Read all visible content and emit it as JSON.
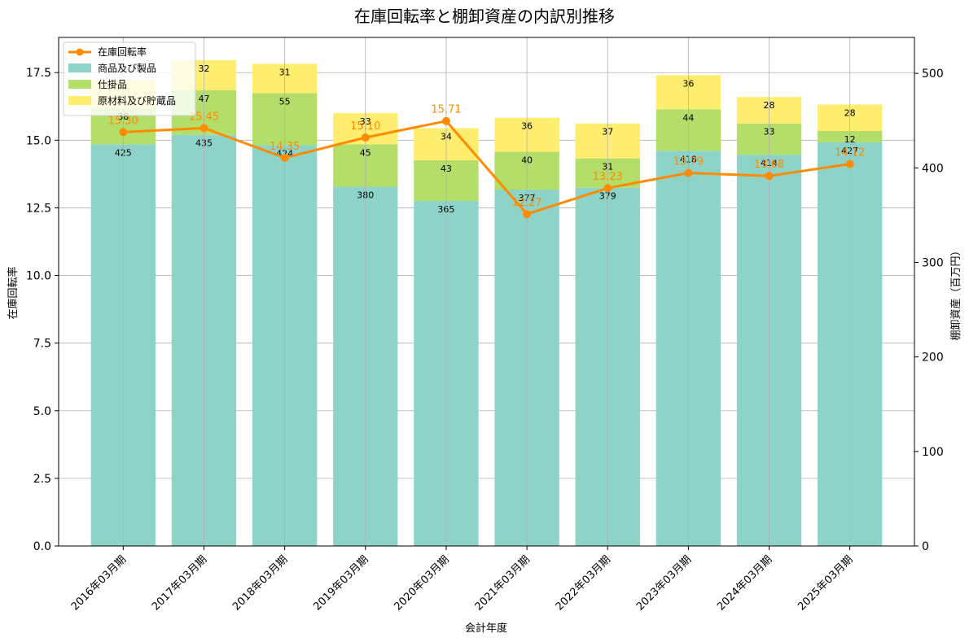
{
  "chart_data": {
    "type": "bar",
    "title": "在庫回転率と棚卸資産の内訳別推移",
    "xlabel": "会計年度",
    "ylabel_left": "在庫回転率",
    "ylabel_right": "棚卸資産（百万円）",
    "categories": [
      "2016年03月期",
      "2017年03月期",
      "2018年03月期",
      "2019年03月期",
      "2020年03月期",
      "2021年03月期",
      "2022年03月期",
      "2023年03月期",
      "2024年03月期",
      "2025年03月期"
    ],
    "ylim_left": [
      0,
      18.8
    ],
    "ylim_right": [
      0,
      538
    ],
    "yticks_left": [
      "0.0",
      "2.5",
      "5.0",
      "7.5",
      "10.0",
      "12.5",
      "15.0",
      "17.5"
    ],
    "yticks_right": [
      "0",
      "100",
      "200",
      "300",
      "400",
      "500"
    ],
    "grid": true,
    "legend_position": "top-left",
    "series": [
      {
        "name": "商品及び製品",
        "axis": "right",
        "kind": "bar",
        "color": "#8dd3c7",
        "values": [
          425,
          435,
          424,
          380,
          365,
          377,
          379,
          418,
          414,
          427
        ],
        "labels": [
          "425",
          "435",
          "424",
          "380",
          "365",
          "377",
          "379",
          "418",
          "414",
          "427"
        ]
      },
      {
        "name": "仕掛品",
        "axis": "right",
        "kind": "bar",
        "color": "#b3de69",
        "values": [
          38,
          47,
          55,
          45,
          43,
          40,
          31,
          44,
          33,
          12
        ],
        "labels": [
          "38",
          "47",
          "55",
          "45",
          "43",
          "40",
          "31",
          "44",
          "33",
          "12"
        ]
      },
      {
        "name": "原材料及び貯蔵品",
        "axis": "right",
        "kind": "bar",
        "color": "#ffed6f",
        "values": [
          30,
          32,
          31,
          33,
          34,
          36,
          37,
          36,
          28,
          28
        ],
        "labels": [
          "",
          "32",
          "31",
          "33",
          "34",
          "36",
          "37",
          "36",
          "28",
          "28"
        ]
      },
      {
        "name": "在庫回転率",
        "axis": "left",
        "kind": "line",
        "color": "#ff8c00",
        "values": [
          15.3,
          15.45,
          14.35,
          15.1,
          15.71,
          12.27,
          13.23,
          13.79,
          13.68,
          14.12
        ],
        "labels": [
          "15.30",
          "15.45",
          "14.35",
          "15.10",
          "15.71",
          "12.27",
          "13.23",
          "13.79",
          "13.68",
          "14.12"
        ]
      }
    ]
  }
}
